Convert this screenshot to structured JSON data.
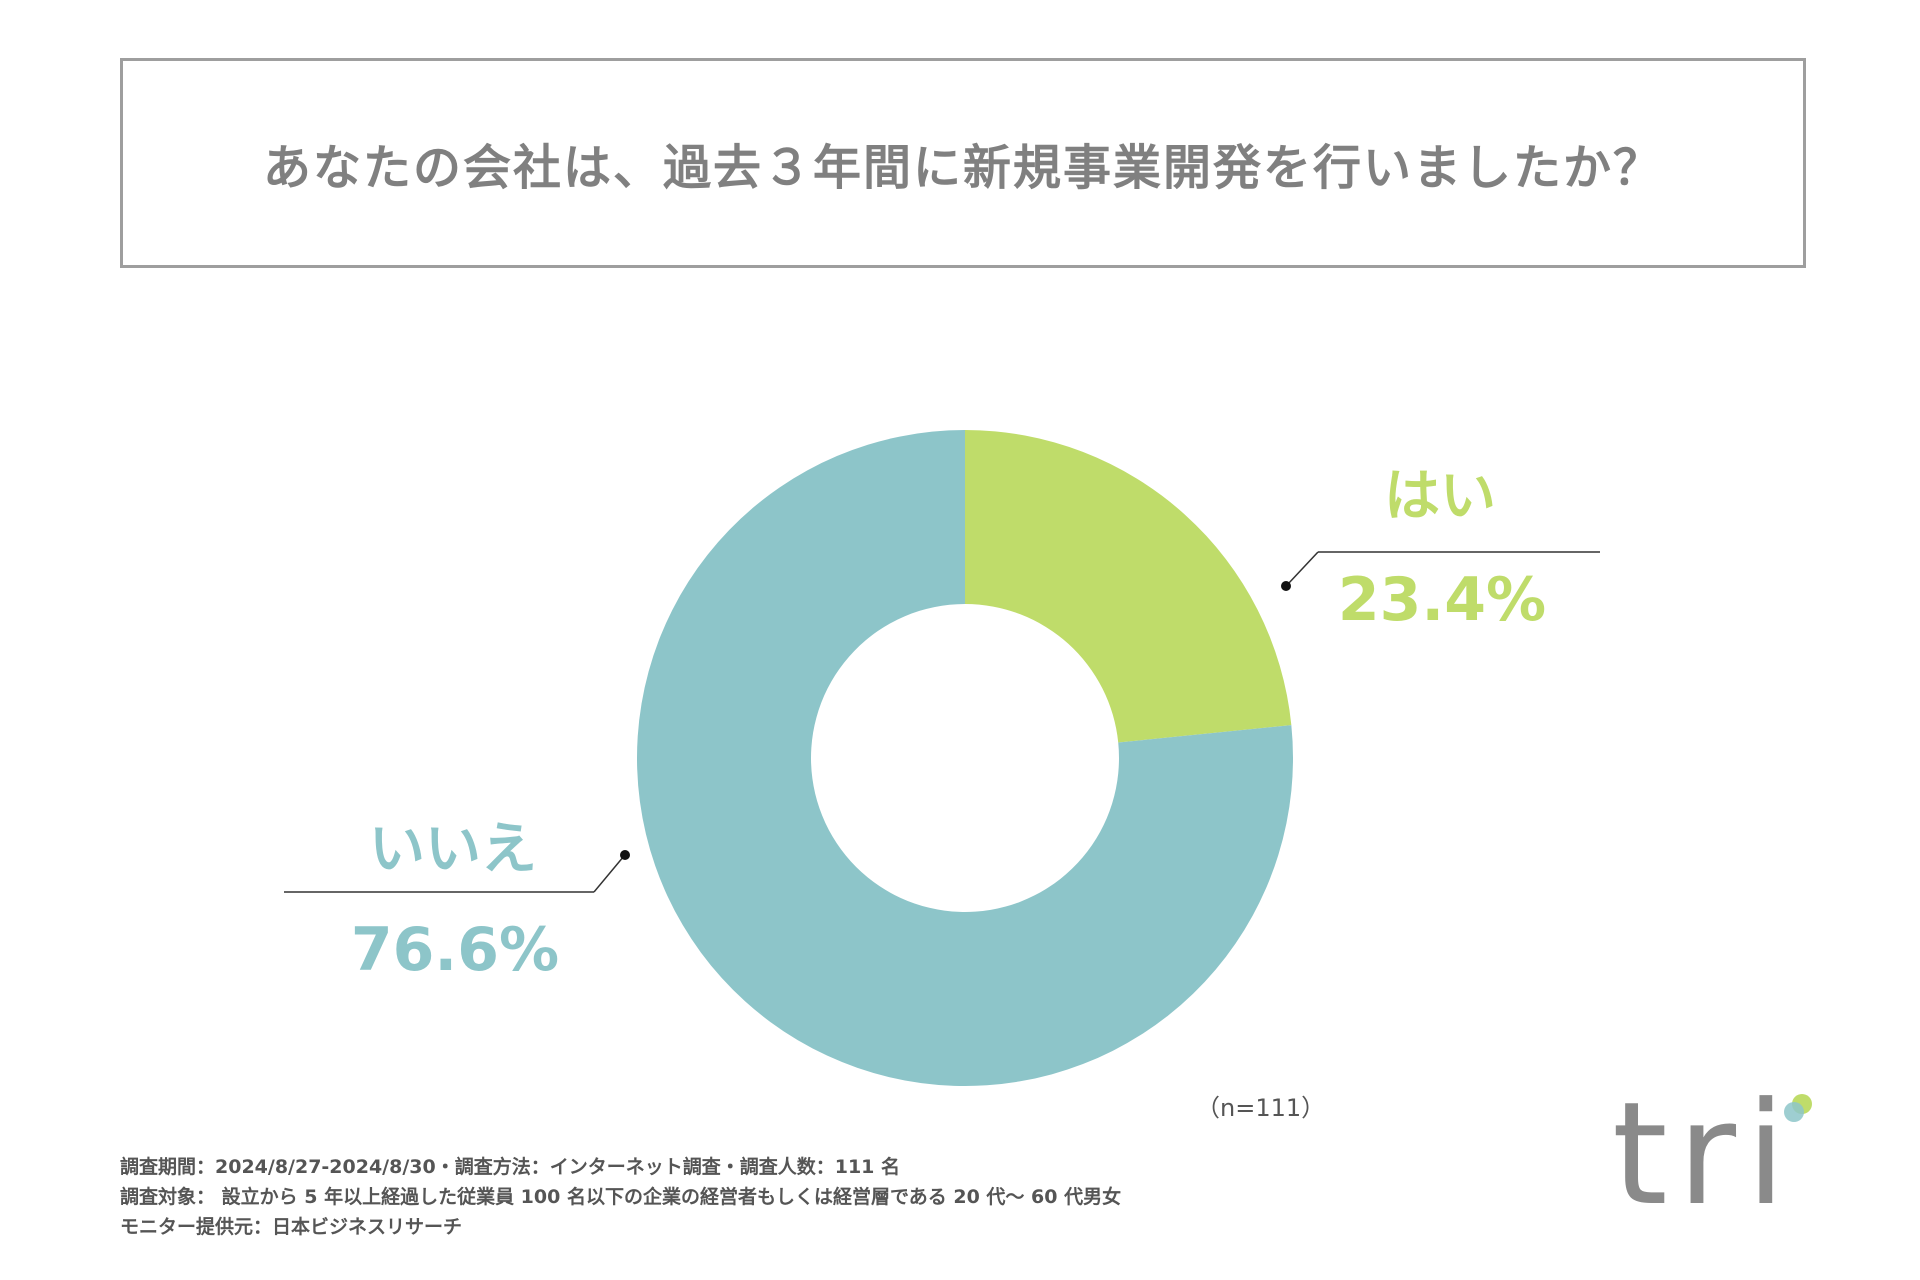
{
  "title": "あなたの会社は、過去３年間に新規事業開発を行いましたか？",
  "chart_data": {
    "type": "pie",
    "variant": "donut",
    "slices": [
      {
        "label": "はい",
        "value": 23.4,
        "value_label": "23.4%",
        "color": "#bfdc6a"
      },
      {
        "label": "いいえ",
        "value": 76.6,
        "value_label": "76.6%",
        "color": "#8dc5c9"
      }
    ],
    "n_label": "（n=111）"
  },
  "footer": {
    "line1": "調査期間：2024/8/27-2024/8/30・調査方法：インターネット調査・調査人数：111 名",
    "line2": "調査対象： 設立から 5 年以上経過した従業員 100 名以下の企業の経営者もしくは経営層である 20 代～ 60 代男女",
    "line3": "モニター提供元：日本ビジネスリサーチ"
  },
  "logo": {
    "text": "tri"
  }
}
